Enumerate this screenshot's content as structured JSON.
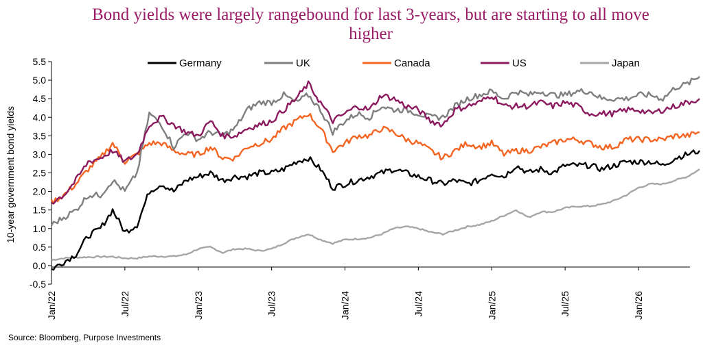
{
  "chart_data": {
    "type": "line",
    "title": "Bond yields were largely rangebound for last 3-years, but are starting to all move higher",
    "ylabel": "10-year government bond yields",
    "xlabel": "",
    "source": "Source: Bloomberg, Purpose Investments",
    "ylim": [
      -0.5,
      5.5
    ],
    "yticks": [
      "-0.5",
      "0.0",
      "0.5",
      "1.0",
      "1.5",
      "2.0",
      "2.5",
      "3.0",
      "3.5",
      "4.0",
      "4.5",
      "5.0",
      "5.5"
    ],
    "xticks": [
      "Jan/22",
      "Jul/22",
      "Jan/23",
      "Jul/23",
      "Jan/24",
      "Jul/24",
      "Jan/25",
      "Jul/25",
      "Jan/26"
    ],
    "grid": false,
    "legend_position": "top",
    "x": [
      "2022-01",
      "2022-02",
      "2022-03",
      "2022-04",
      "2022-05",
      "2022-06",
      "2022-07",
      "2022-08",
      "2022-09",
      "2022-10",
      "2022-11",
      "2022-12",
      "2023-01",
      "2023-02",
      "2023-03",
      "2023-04",
      "2023-05",
      "2023-06",
      "2023-07",
      "2023-08",
      "2023-09",
      "2023-10",
      "2023-11",
      "2023-12",
      "2024-01",
      "2024-02",
      "2024-03",
      "2024-04",
      "2024-05",
      "2024-06",
      "2024-07",
      "2024-08",
      "2024-09",
      "2024-10",
      "2024-11",
      "2024-12",
      "2025-01",
      "2025-02",
      "2025-03",
      "2025-04",
      "2025-05",
      "2025-06",
      "2025-07",
      "2025-08",
      "2025-09",
      "2025-10",
      "2025-11",
      "2025-12",
      "2026-01",
      "2026-02",
      "2026-03",
      "2026-04",
      "2026-05",
      "2026-06"
    ],
    "series": [
      {
        "name": "Germany",
        "color": "#000000",
        "values": [
          -0.1,
          0.1,
          0.3,
          0.8,
          1.0,
          1.5,
          0.9,
          1.1,
          2.0,
          2.2,
          2.0,
          2.3,
          2.4,
          2.5,
          2.3,
          2.4,
          2.4,
          2.5,
          2.5,
          2.6,
          2.8,
          2.9,
          2.6,
          2.1,
          2.2,
          2.3,
          2.4,
          2.5,
          2.6,
          2.5,
          2.4,
          2.3,
          2.2,
          2.3,
          2.2,
          2.3,
          2.5,
          2.4,
          2.7,
          2.5,
          2.6,
          2.5,
          2.7,
          2.7,
          2.7,
          2.6,
          2.7,
          2.8,
          2.8,
          2.8,
          2.7,
          2.9,
          3.0,
          3.1
        ]
      },
      {
        "name": "UK",
        "color": "#7f7f7f",
        "values": [
          1.1,
          1.3,
          1.5,
          1.9,
          1.9,
          2.3,
          2.0,
          2.5,
          4.1,
          3.8,
          3.2,
          3.6,
          3.4,
          3.6,
          3.5,
          3.7,
          4.2,
          4.4,
          4.4,
          4.6,
          4.4,
          4.6,
          4.2,
          3.6,
          3.9,
          4.1,
          4.0,
          4.3,
          4.2,
          4.2,
          4.1,
          4.0,
          4.0,
          4.3,
          4.5,
          4.6,
          4.7,
          4.5,
          4.7,
          4.6,
          4.7,
          4.6,
          4.6,
          4.7,
          4.7,
          4.5,
          4.5,
          4.5,
          4.6,
          4.6,
          4.5,
          4.8,
          4.9,
          5.1
        ]
      },
      {
        "name": "Canada",
        "color": "#f26522",
        "values": [
          1.7,
          1.9,
          2.2,
          2.6,
          2.9,
          3.3,
          2.8,
          3.0,
          3.3,
          3.3,
          3.1,
          3.0,
          3.0,
          3.2,
          2.9,
          2.9,
          3.2,
          3.3,
          3.4,
          3.7,
          3.9,
          4.1,
          3.7,
          3.1,
          3.3,
          3.5,
          3.5,
          3.7,
          3.6,
          3.4,
          3.3,
          3.1,
          2.9,
          3.1,
          3.3,
          3.2,
          3.3,
          3.0,
          3.1,
          3.1,
          3.2,
          3.3,
          3.4,
          3.4,
          3.3,
          3.2,
          3.2,
          3.4,
          3.4,
          3.4,
          3.4,
          3.5,
          3.5,
          3.6
        ]
      },
      {
        "name": "US",
        "color": "#8b1a5f",
        "values": [
          1.7,
          1.9,
          2.3,
          2.8,
          2.9,
          3.1,
          2.8,
          3.0,
          3.8,
          4.0,
          3.8,
          3.6,
          3.5,
          3.9,
          3.5,
          3.5,
          3.7,
          3.8,
          3.9,
          4.2,
          4.5,
          4.9,
          4.4,
          3.9,
          4.1,
          4.3,
          4.2,
          4.6,
          4.5,
          4.3,
          4.2,
          3.9,
          3.8,
          4.2,
          4.3,
          4.4,
          4.6,
          4.3,
          4.3,
          4.3,
          4.4,
          4.3,
          4.4,
          4.3,
          4.1,
          4.1,
          4.1,
          4.2,
          4.2,
          4.1,
          4.2,
          4.3,
          4.4,
          4.5
        ]
      },
      {
        "name": "Japan",
        "color": "#a6a6a6",
        "values": [
          0.15,
          0.2,
          0.22,
          0.23,
          0.24,
          0.24,
          0.2,
          0.2,
          0.25,
          0.25,
          0.25,
          0.3,
          0.45,
          0.5,
          0.35,
          0.45,
          0.45,
          0.4,
          0.45,
          0.6,
          0.75,
          0.85,
          0.7,
          0.6,
          0.7,
          0.72,
          0.75,
          0.85,
          1.0,
          1.05,
          1.0,
          0.9,
          0.85,
          0.95,
          1.05,
          1.1,
          1.2,
          1.35,
          1.5,
          1.3,
          1.45,
          1.45,
          1.55,
          1.6,
          1.6,
          1.65,
          1.75,
          1.9,
          2.1,
          2.2,
          2.2,
          2.3,
          2.4,
          2.6
        ]
      }
    ]
  }
}
